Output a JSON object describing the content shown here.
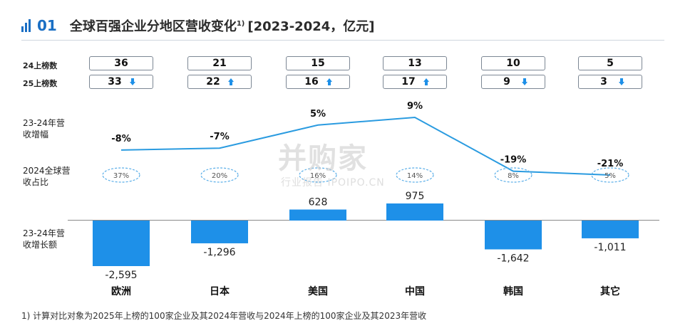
{
  "header": {
    "section_number": "01",
    "title": "全球百强企业分地区营收变化",
    "title_sup": "1)",
    "bracket": "[2023-2024，亿元]"
  },
  "rows": {
    "rank_2024_label": "24上榜数",
    "rank_2025_label": "25上榜数",
    "growth_rate_label": "23-24年营收增幅",
    "share_label": "2024全球营收占比",
    "growth_amount_label": "23-24年营收增长额"
  },
  "watermark": {
    "main": "并购家",
    "sub": "行业报告 IPOIPO.CN"
  },
  "footnote": "1) 计算对比对象为2025年上榜的100家企业及其2024年营收与2024年上榜的100家企业及其2023年营收",
  "colors": {
    "accent": "#1a6fc4",
    "bar": "#1e90e8",
    "line": "#2a9be0",
    "share_ellipse": "#5aaee8"
  },
  "chart_data": {
    "type": "bar",
    "categories": [
      "欧洲",
      "日本",
      "美国",
      "中国",
      "韩国",
      "其它"
    ],
    "rank_2024": [
      36,
      21,
      15,
      13,
      10,
      5
    ],
    "rank_2025": [
      33,
      22,
      16,
      17,
      9,
      3
    ],
    "rank_2025_trend": [
      "down",
      "up",
      "up",
      "up",
      "down",
      "down"
    ],
    "growth_rate_pct": [
      -8,
      -7,
      5,
      9,
      -19,
      -21
    ],
    "growth_rate_labels": [
      "-8%",
      "-7%",
      "5%",
      "9%",
      "-19%",
      "-21%"
    ],
    "share_2024_labels": [
      "37%",
      "20%",
      "16%",
      "14%",
      "8%",
      "5%"
    ],
    "growth_amount": [
      -2595,
      -1296,
      628,
      975,
      -1642,
      -1011
    ],
    "growth_amount_labels": [
      "-2,595",
      "-1,296",
      "628",
      "975",
      "-1,642",
      "-1,011"
    ]
  }
}
